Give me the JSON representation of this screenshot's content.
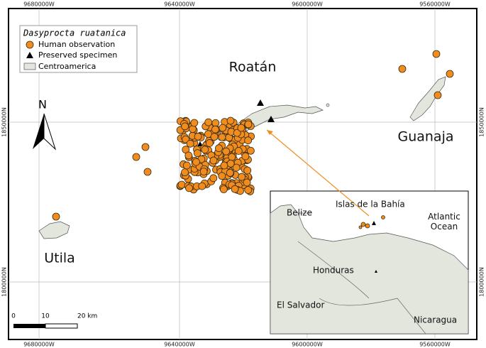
{
  "map": {
    "grid_labels": {
      "top": [
        "9680000W",
        "9640000W",
        "9600000W",
        "9560000W"
      ],
      "bottom": [
        "9680000W",
        "9640000W",
        "9600000W",
        "9560000W"
      ],
      "left": [
        "1850000N",
        "1800000N"
      ],
      "right": [
        "1850000N",
        "1800000N"
      ]
    },
    "legend": {
      "title": "Dasyprocta ruatanica",
      "items": [
        "Human observation",
        "Preserved specimen",
        "Centroamerica"
      ]
    },
    "places": [
      "Roatán",
      "Guanaja",
      "Utila"
    ],
    "north": "N",
    "scale": [
      "0",
      "10",
      "20 km"
    ],
    "inset": [
      "Belize",
      "Islas de la Bahía",
      "Atlantic Ocean",
      "Honduras",
      "El Salvador",
      "Nicaragua"
    ]
  }
}
